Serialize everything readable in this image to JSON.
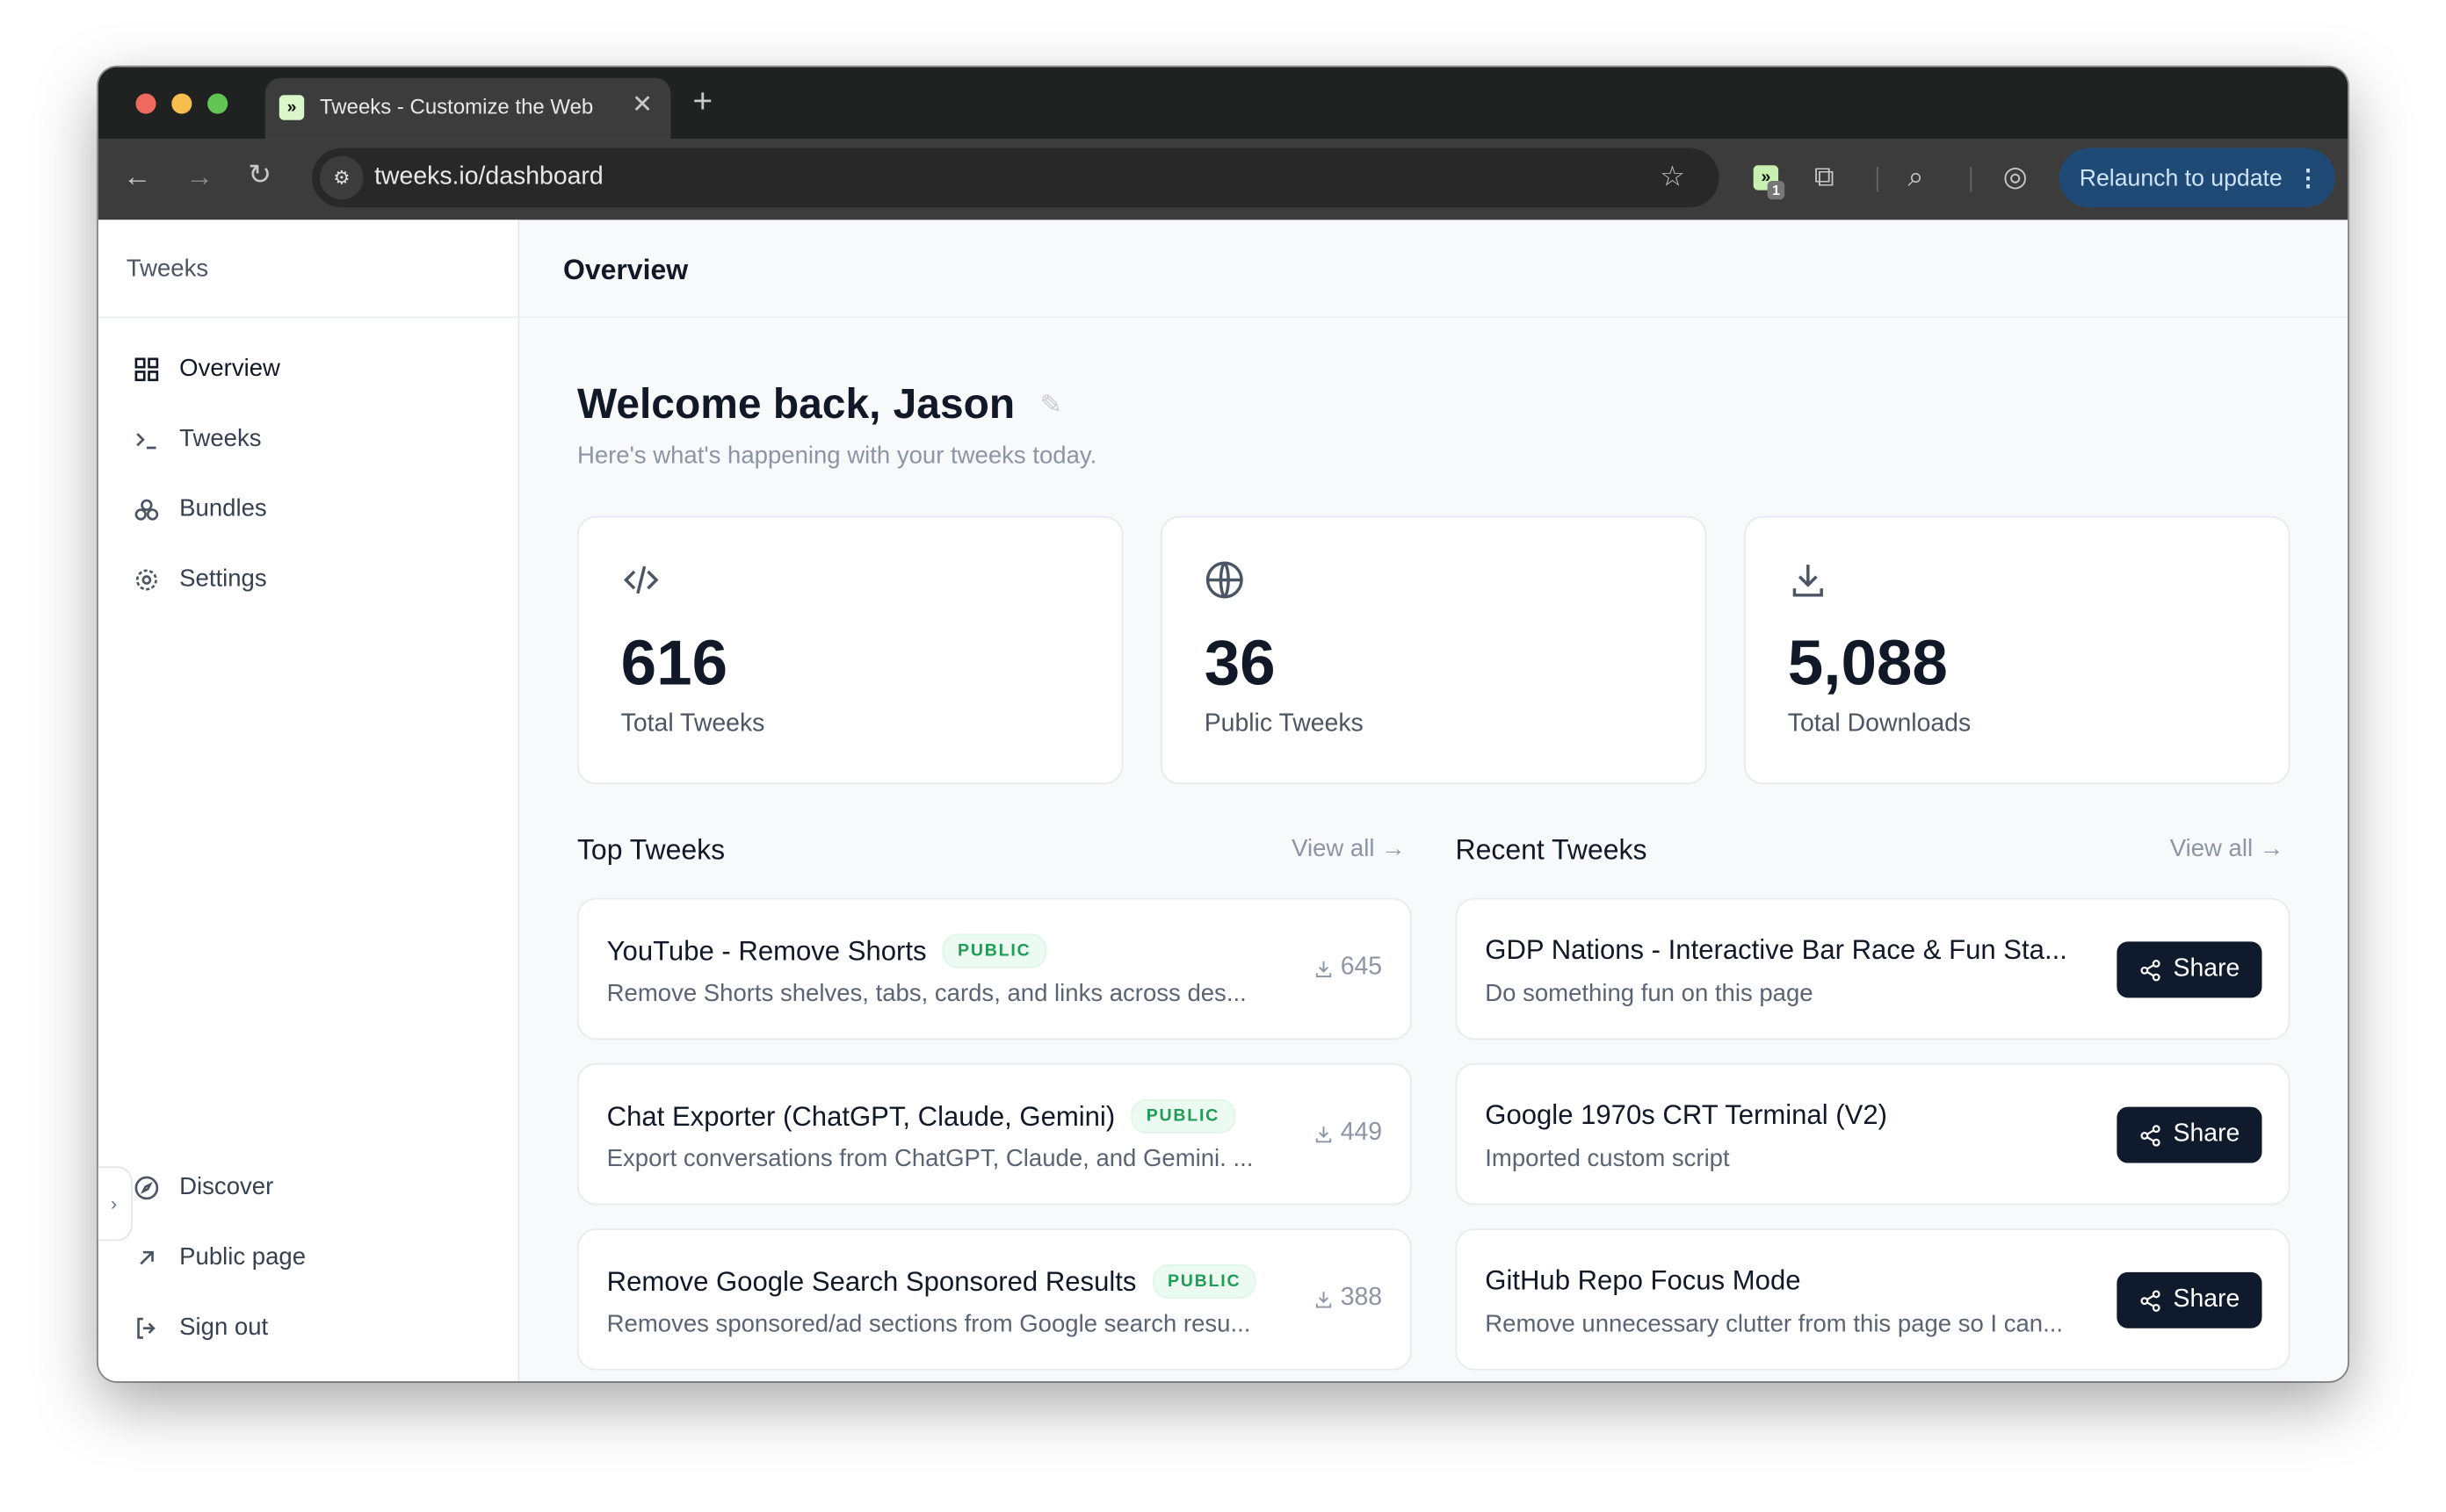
{
  "browser": {
    "tab_title": "Tweeks - Customize the Web",
    "url": "tweeks.io/dashboard",
    "extension_badge": "1",
    "relaunch_label": "Relaunch to update",
    "colors": {
      "tabbar": "#202121",
      "toolbar": "#3c3c3c",
      "relaunch": "#1f4a75"
    }
  },
  "sidebar": {
    "brand": "Tweeks",
    "items": [
      {
        "label": "Overview",
        "icon": "dashboard-icon",
        "active": true
      },
      {
        "label": "Tweeks",
        "icon": "terminal-icon"
      },
      {
        "label": "Bundles",
        "icon": "bundles-icon"
      },
      {
        "label": "Settings",
        "icon": "gear-icon"
      }
    ],
    "bottom_items": [
      {
        "label": "Discover",
        "icon": "compass-icon"
      },
      {
        "label": "Public page",
        "icon": "arrow-up-right-icon"
      },
      {
        "label": "Sign out",
        "icon": "sign-out-icon"
      }
    ]
  },
  "header": {
    "title": "Overview"
  },
  "welcome": {
    "greeting": "Welcome back,",
    "name": "Jason",
    "subtitle": "Here's what's happening with your tweeks today."
  },
  "stats": [
    {
      "value": "616",
      "label": "Total Tweeks",
      "icon": "code-icon"
    },
    {
      "value": "36",
      "label": "Public Tweeks",
      "icon": "globe-icon"
    },
    {
      "value": "5,088",
      "label": "Total Downloads",
      "icon": "download-icon"
    }
  ],
  "top_tweeks": {
    "title": "Top Tweeks",
    "view_all": "View all",
    "items": [
      {
        "title": "YouTube - Remove Shorts",
        "badge": "PUBLIC",
        "description": "Remove Shorts shelves, tabs, cards, and links across des...",
        "downloads": "645"
      },
      {
        "title": "Chat Exporter (ChatGPT, Claude, Gemini)",
        "badge": "PUBLIC",
        "description": "Export conversations from ChatGPT, Claude, and Gemini. ...",
        "downloads": "449"
      },
      {
        "title": "Remove Google Search Sponsored Results",
        "badge": "PUBLIC",
        "description": "Removes sponsored/ad sections from Google search resu...",
        "downloads": "388"
      }
    ]
  },
  "recent_tweeks": {
    "title": "Recent Tweeks",
    "view_all": "View all",
    "share_label": "Share",
    "items": [
      {
        "title": "GDP Nations - Interactive Bar Race & Fun Sta...",
        "description": "Do something fun on this page"
      },
      {
        "title": "Google 1970s CRT Terminal (V2)",
        "description": "Imported custom script"
      },
      {
        "title": "GitHub Repo Focus Mode",
        "description": "Remove unnecessary clutter from this page so I can..."
      }
    ]
  }
}
